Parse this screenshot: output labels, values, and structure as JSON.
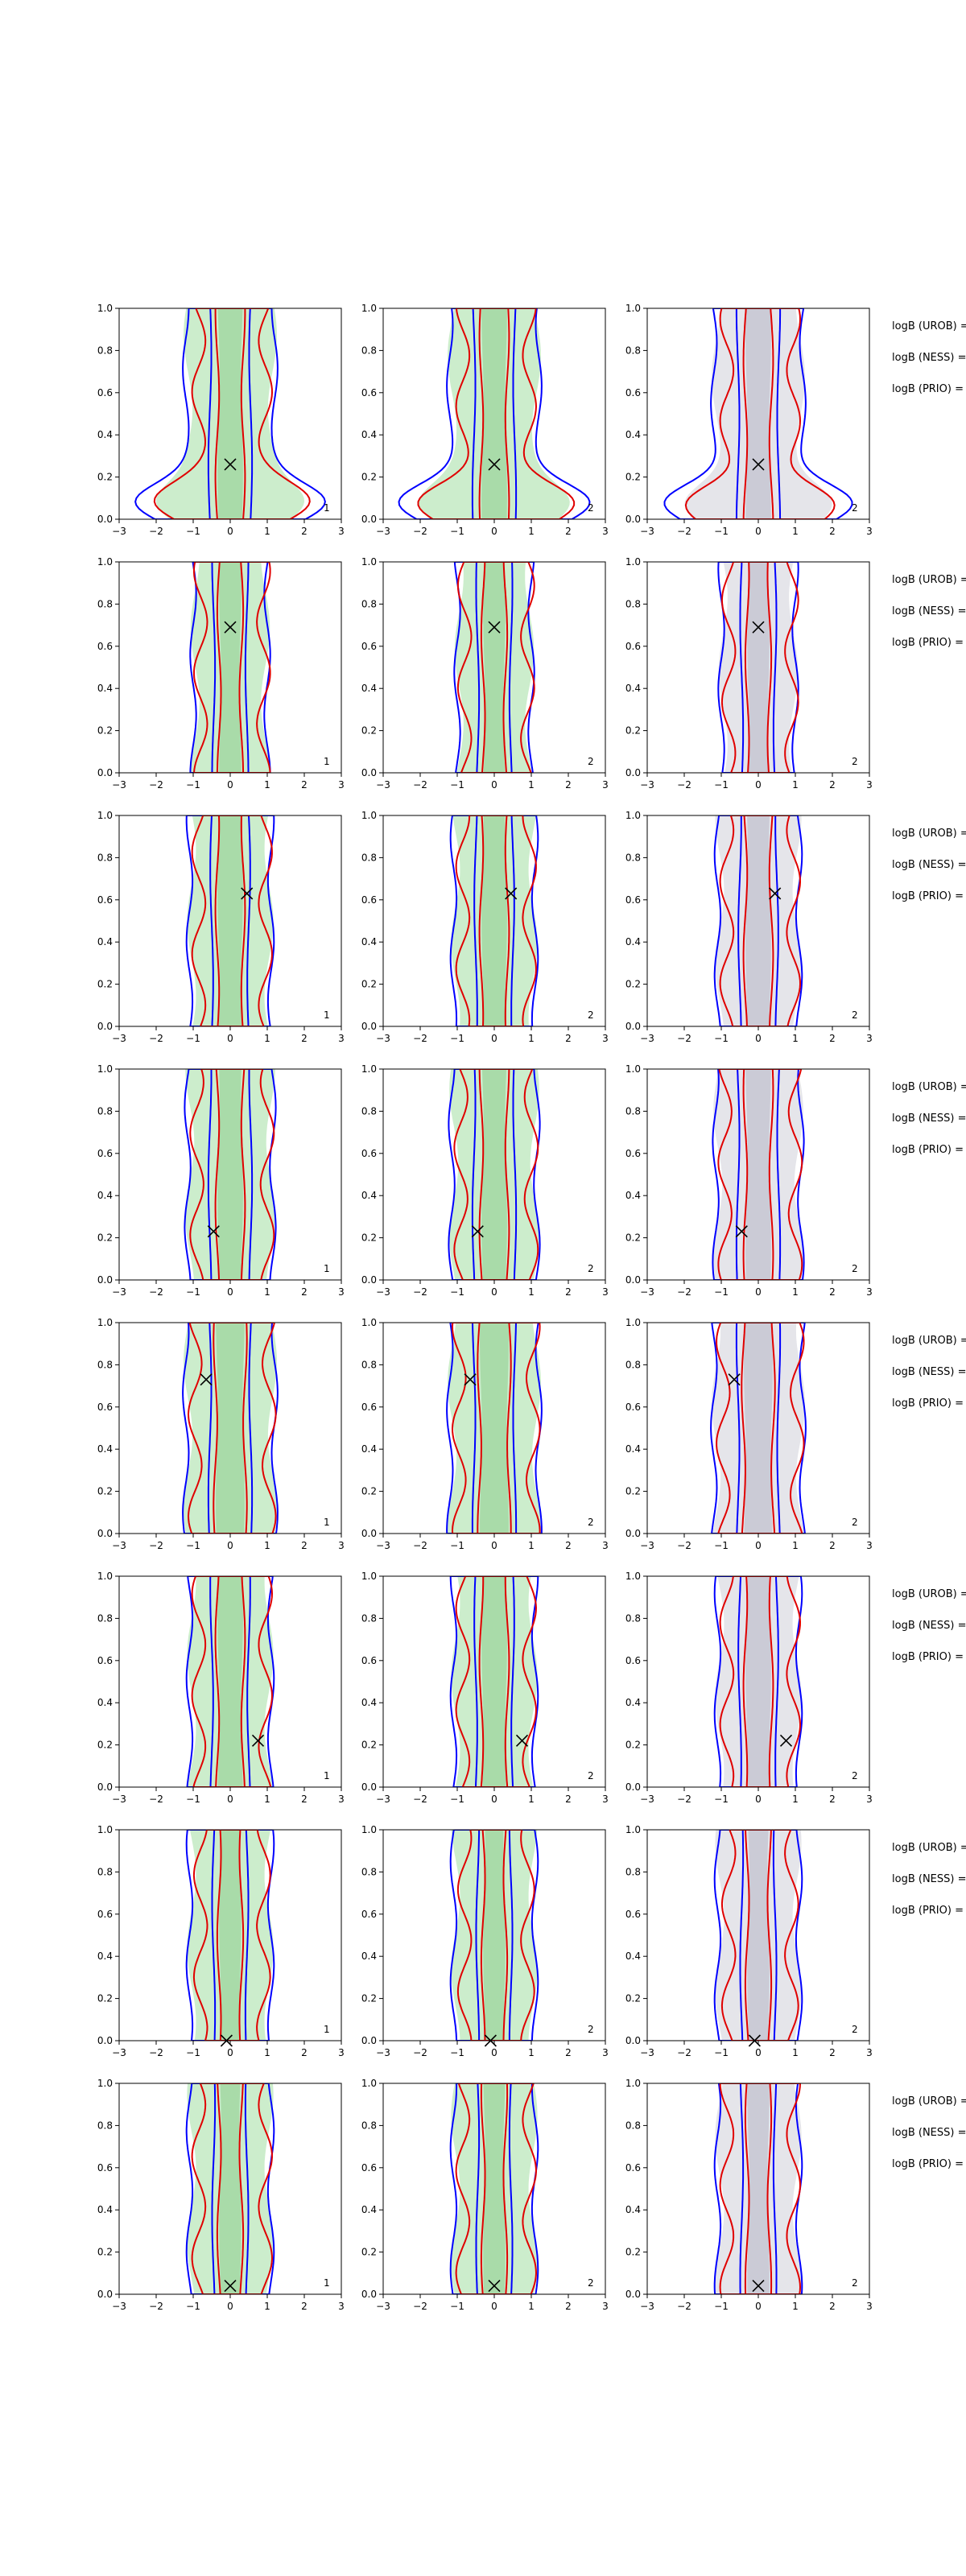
{
  "chart_data": {
    "type": "contour-grid",
    "xlim": [
      -3,
      3
    ],
    "ylim": [
      0,
      1
    ],
    "xticks": [
      "−3",
      "−2",
      "−1",
      "0",
      "1",
      "2",
      "3"
    ],
    "yticks": [
      "0.0",
      "0.2",
      "0.4",
      "0.6",
      "0.8",
      "1.0"
    ],
    "columns": [
      {
        "corner_label": [
          "1",
          "1",
          "1",
          "1",
          "1",
          "1",
          "1",
          "1"
        ]
      },
      {
        "corner_label": [
          "2",
          "2",
          "2",
          "2",
          "2",
          "2",
          "2",
          "2"
        ]
      },
      {
        "corner_label": [
          "2",
          "2",
          "2",
          "2",
          "2",
          "2",
          "2",
          "2"
        ]
      }
    ],
    "colors": {
      "blue": "#0000ff",
      "red": "#e00000",
      "green_fill": "#bfe9bf",
      "grey_fill": "#e2e2e8"
    },
    "side_labels": [
      "logB (UROB) =",
      "logB (NESS) =",
      "logB (PRIO) ="
    ],
    "rows": [
      {
        "marker": [
          0.0,
          0.26
        ],
        "blue_w": [
          1.2,
          0.55
        ],
        "red_w": [
          0.9,
          0.35
        ],
        "lower_bulge": 1.3
      },
      {
        "marker": [
          0.0,
          0.69
        ],
        "blue_w": [
          1.0,
          0.45
        ],
        "red_w": [
          0.85,
          0.3
        ],
        "lower_bulge": 0.0
      },
      {
        "marker": [
          0.45,
          0.63
        ],
        "blue_w": [
          1.1,
          0.5
        ],
        "red_w": [
          0.9,
          0.35
        ],
        "lower_bulge": 0.0
      },
      {
        "marker": [
          -0.45,
          0.23
        ],
        "blue_w": [
          1.15,
          0.55
        ],
        "red_w": [
          0.95,
          0.35
        ],
        "lower_bulge": 0.0
      },
      {
        "marker": [
          -0.65,
          0.73
        ],
        "blue_w": [
          1.2,
          0.55
        ],
        "red_w": [
          1.0,
          0.4
        ],
        "lower_bulge": 0.0
      },
      {
        "marker": [
          0.75,
          0.22
        ],
        "blue_w": [
          1.1,
          0.5
        ],
        "red_w": [
          0.9,
          0.35
        ],
        "lower_bulge": 0.0
      },
      {
        "marker": [
          -0.1,
          0.0
        ],
        "blue_w": [
          1.1,
          0.45
        ],
        "red_w": [
          0.85,
          0.3
        ],
        "lower_bulge": 0.0
      },
      {
        "marker": [
          0.0,
          0.04
        ],
        "blue_w": [
          1.1,
          0.45
        ],
        "red_w": [
          0.9,
          0.3
        ],
        "lower_bulge": 0.0
      }
    ]
  }
}
